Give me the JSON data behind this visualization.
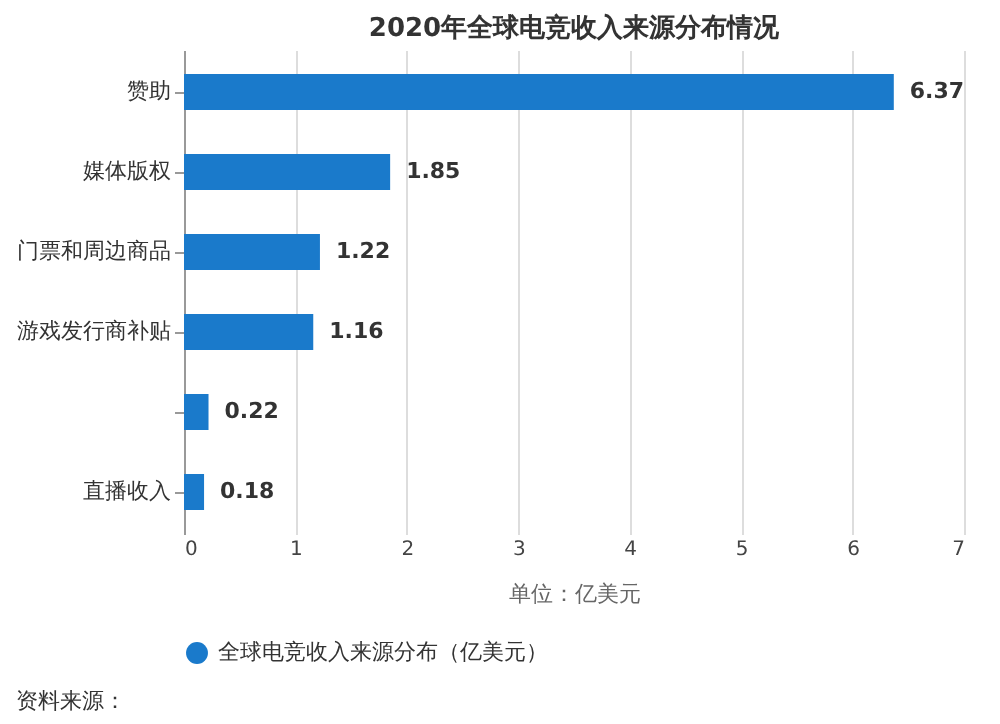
{
  "chart_data": {
    "type": "bar",
    "orientation": "horizontal",
    "title": "2020年全球电竞收入来源分布情况",
    "xlabel": "单位：亿美元",
    "categories": [
      "赞助",
      "媒体版权",
      "门票和周边商品",
      "游戏发行商补贴",
      null,
      "直播收入"
    ],
    "series": [
      {
        "name": "全球电竞收入来源分布（亿美元）",
        "color": "#1a7acb",
        "values": [
          6.37,
          1.85,
          1.22,
          1.16,
          0.22,
          0.18
        ]
      }
    ],
    "xlim": [
      0,
      7
    ],
    "xticks": [
      0,
      1,
      2,
      3,
      4,
      5,
      6,
      7
    ],
    "grid": "x",
    "legend": "bottom",
    "data_labels": true,
    "annotations": [
      "资料来源："
    ]
  }
}
